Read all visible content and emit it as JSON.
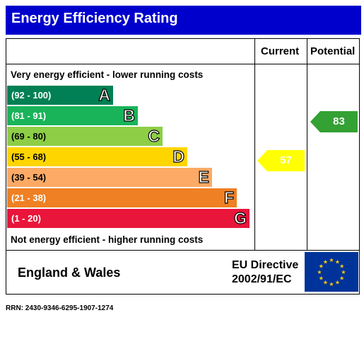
{
  "title": "Energy Efficiency Rating",
  "columns": {
    "current": "Current",
    "potential": "Potential"
  },
  "top_note": "Very energy efficient - lower running costs",
  "bottom_note": "Not energy efficient - higher running costs",
  "bands": [
    {
      "range": "(92 - 100)",
      "letter": "A",
      "color": "#008054"
    },
    {
      "range": "(81 - 91)",
      "letter": "B",
      "color": "#19b459"
    },
    {
      "range": "(69 - 80)",
      "letter": "C",
      "color": "#8dce46"
    },
    {
      "range": "(55 - 68)",
      "letter": "D",
      "color": "#ffd500"
    },
    {
      "range": "(39 - 54)",
      "letter": "E",
      "color": "#fcaa65"
    },
    {
      "range": "(21 - 38)",
      "letter": "F",
      "color": "#ef8023"
    },
    {
      "range": "(1 - 20)",
      "letter": "G",
      "color": "#e9153b"
    }
  ],
  "current": {
    "value": "57",
    "color": "#ffff00"
  },
  "potential": {
    "value": "83",
    "color": "#33a133"
  },
  "footer": {
    "region": "England & Wales",
    "directive_line1": "EU Directive",
    "directive_line2": "2002/91/EC"
  },
  "rrn": "RRN: 2430-9346-6295-1907-1274",
  "flag_icon": "eu-flag-icon"
}
